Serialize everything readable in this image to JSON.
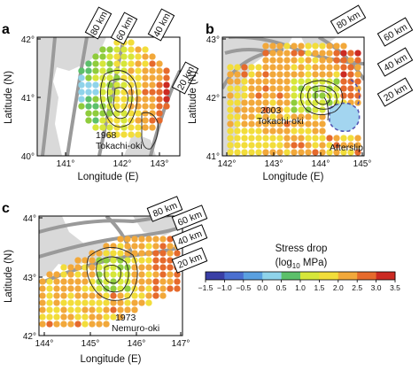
{
  "figure": {
    "panels": [
      {
        "letter": "a",
        "xlabel": "Longitude (E)",
        "ylabel": "Latitude (N)",
        "xticks": [
          "141°",
          "142°",
          "143°"
        ],
        "yticks": [
          "42°",
          "41°",
          "40°"
        ],
        "annotations": [
          "1968",
          "Tokachi-oki"
        ],
        "depth_labels": [
          "80 km",
          "60 km",
          "40 km",
          "20 km"
        ]
      },
      {
        "letter": "b",
        "xlabel": "Longitude (E)",
        "ylabel": "Latitude (N)",
        "xticks": [
          "142°",
          "143°",
          "144°",
          "145°"
        ],
        "yticks": [
          "43°",
          "42°",
          "41°"
        ],
        "annotations": [
          "2003",
          "Tokachi-oki",
          "Afterslip"
        ],
        "depth_labels": [
          "80 km",
          "60 km",
          "40 km",
          "20 km"
        ]
      },
      {
        "letter": "c",
        "xlabel": "Longitude (E)",
        "ylabel": "Latitude (N)",
        "xticks": [
          "144°",
          "145°",
          "146°",
          "147°"
        ],
        "yticks": [
          "44°",
          "43°",
          "42°"
        ],
        "annotations": [
          "1973",
          "Nemuro-oki"
        ],
        "depth_labels": [
          "80 km",
          "60 km",
          "40 km",
          "20 km"
        ]
      }
    ],
    "colorbar": {
      "title_line1": "Stress drop",
      "title_line2_pre": "(log",
      "title_line2_sub": "10",
      "title_line2_post": " MPa)",
      "ticks": [
        "−1.5",
        "−1.0",
        "−0.5",
        "0.0",
        "0.5",
        "1.0",
        "1.5",
        "2.0",
        "2.5",
        "3.0",
        "3.5"
      ],
      "colors": [
        "#3a3fa6",
        "#4a6fd0",
        "#5aa0e0",
        "#8fd3ea",
        "#5cc06a",
        "#8fcc3c",
        "#d6e63a",
        "#f2dd3a",
        "#f2a83a",
        "#e66a2c",
        "#cc2a22"
      ]
    }
  }
}
